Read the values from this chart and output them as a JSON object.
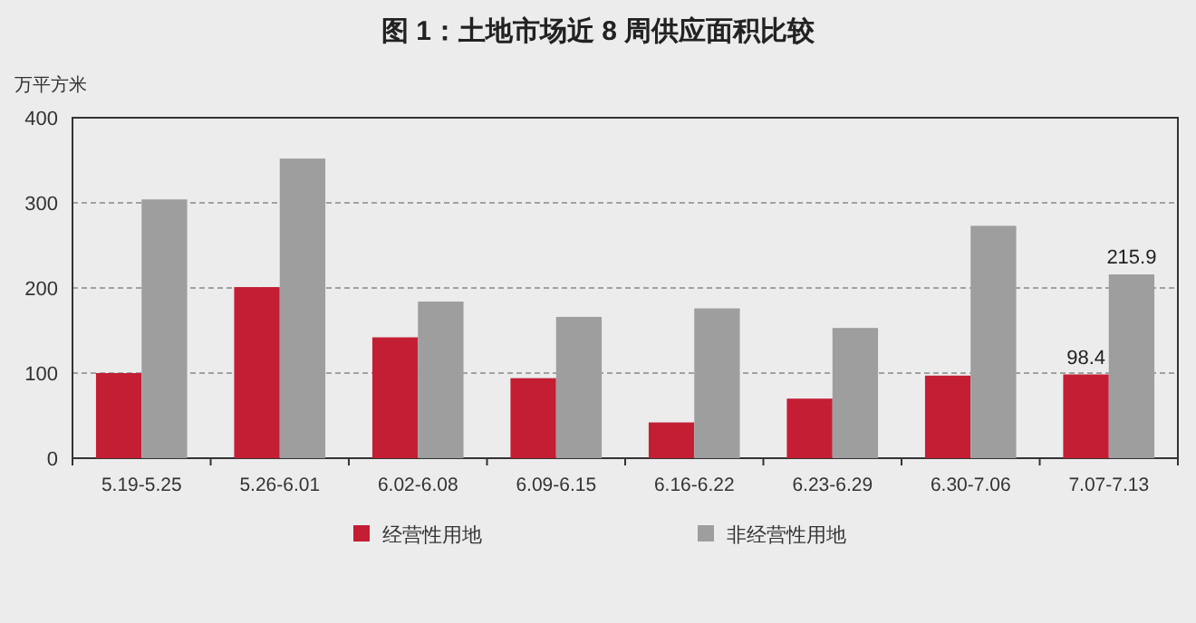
{
  "chart_data": {
    "type": "bar",
    "title": "图 1：土地市场近 8 周供应面积比较",
    "ylabel": "万平方米",
    "categories": [
      "5.19-5.25",
      "5.26-6.01",
      "6.02-6.08",
      "6.09-6.15",
      "6.16-6.22",
      "6.23-6.29",
      "6.30-7.06",
      "7.07-7.13"
    ],
    "series": [
      {
        "name": "经营性用地",
        "color": "#c41e34",
        "values": [
          100,
          201,
          142,
          94,
          42,
          70,
          97,
          98.4
        ],
        "value_labels": [
          null,
          null,
          null,
          null,
          null,
          null,
          null,
          "98.4"
        ]
      },
      {
        "name": "非经营性用地",
        "color": "#9e9e9e",
        "values": [
          304,
          352,
          184,
          166,
          176,
          153,
          273,
          215.9
        ],
        "value_labels": [
          null,
          null,
          null,
          null,
          null,
          null,
          null,
          "215.9"
        ]
      }
    ],
    "ylim": [
      0,
      400
    ],
    "yticks": [
      0,
      100,
      200,
      300,
      400
    ],
    "grid": "y",
    "legend": "bottom"
  }
}
